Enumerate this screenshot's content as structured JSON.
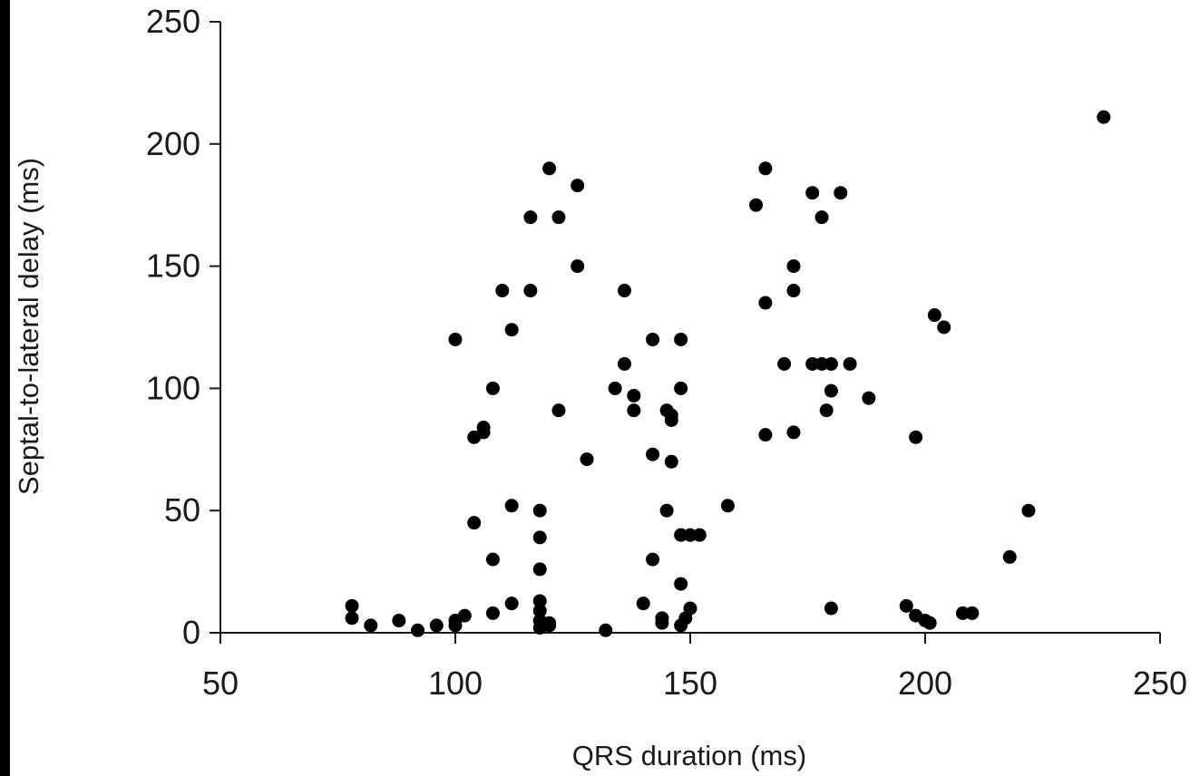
{
  "chart_data": {
    "type": "scatter",
    "title": "",
    "xlabel": "QRS duration (ms)",
    "ylabel": "Septal-to-lateral delay (ms)",
    "xlim": [
      50,
      250
    ],
    "ylim": [
      0,
      250
    ],
    "xticks": [
      50,
      100,
      150,
      200,
      250
    ],
    "yticks": [
      0,
      50,
      100,
      150,
      200,
      250
    ],
    "grid": false,
    "legend": "none",
    "colors": {
      "marker": "#000000",
      "axis": "#1a1a1a",
      "background": "#ffffff",
      "frame": "#000000"
    },
    "points": [
      [
        78,
        11
      ],
      [
        78,
        6
      ],
      [
        82,
        3
      ],
      [
        88,
        5
      ],
      [
        92,
        1
      ],
      [
        96,
        3
      ],
      [
        100,
        3
      ],
      [
        100,
        5
      ],
      [
        102,
        7
      ],
      [
        100,
        120
      ],
      [
        108,
        100
      ],
      [
        104,
        80
      ],
      [
        106,
        82
      ],
      [
        106,
        84
      ],
      [
        104,
        45
      ],
      [
        108,
        30
      ],
      [
        108,
        8
      ],
      [
        110,
        140
      ],
      [
        112,
        124
      ],
      [
        112,
        52
      ],
      [
        112,
        12
      ],
      [
        116,
        170
      ],
      [
        116,
        140
      ],
      [
        118,
        50
      ],
      [
        118,
        39
      ],
      [
        118,
        26
      ],
      [
        118,
        13
      ],
      [
        118,
        9
      ],
      [
        118,
        5
      ],
      [
        118,
        2
      ],
      [
        120,
        3
      ],
      [
        120,
        4
      ],
      [
        120,
        190
      ],
      [
        122,
        170
      ],
      [
        122,
        91
      ],
      [
        126,
        183
      ],
      [
        126,
        150
      ],
      [
        128,
        71
      ],
      [
        132,
        1
      ],
      [
        134,
        100
      ],
      [
        136,
        140
      ],
      [
        136,
        110
      ],
      [
        138,
        97
      ],
      [
        138,
        91
      ],
      [
        140,
        12
      ],
      [
        142,
        120
      ],
      [
        142,
        73
      ],
      [
        142,
        30
      ],
      [
        144,
        6
      ],
      [
        144,
        4
      ],
      [
        145,
        91
      ],
      [
        146,
        89
      ],
      [
        146,
        87
      ],
      [
        146,
        70
      ],
      [
        145,
        50
      ],
      [
        148,
        120
      ],
      [
        148,
        100
      ],
      [
        148,
        40
      ],
      [
        148,
        20
      ],
      [
        148,
        3
      ],
      [
        149,
        6
      ],
      [
        150,
        10
      ],
      [
        150,
        40
      ],
      [
        152,
        40
      ],
      [
        158,
        52
      ],
      [
        164,
        175
      ],
      [
        166,
        190
      ],
      [
        166,
        135
      ],
      [
        166,
        81
      ],
      [
        170,
        110
      ],
      [
        172,
        150
      ],
      [
        172,
        140
      ],
      [
        172,
        82
      ],
      [
        176,
        180
      ],
      [
        176,
        110
      ],
      [
        178,
        170
      ],
      [
        178,
        110
      ],
      [
        180,
        110
      ],
      [
        179,
        91
      ],
      [
        180,
        99
      ],
      [
        180,
        10
      ],
      [
        182,
        180
      ],
      [
        184,
        110
      ],
      [
        188,
        96
      ],
      [
        196,
        11
      ],
      [
        198,
        80
      ],
      [
        198,
        7
      ],
      [
        200,
        5
      ],
      [
        201,
        4
      ],
      [
        202,
        130
      ],
      [
        204,
        125
      ],
      [
        208,
        8
      ],
      [
        210,
        8
      ],
      [
        218,
        31
      ],
      [
        222,
        50
      ],
      [
        238,
        211
      ]
    ]
  }
}
